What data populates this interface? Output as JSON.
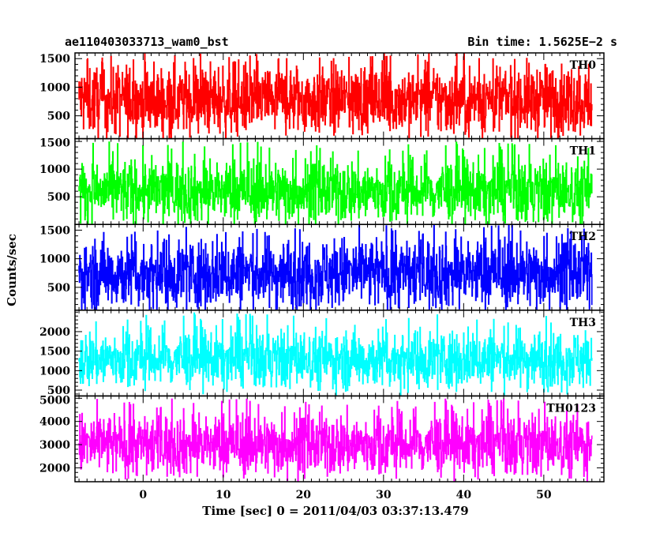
{
  "header": {
    "title_left": "ae110403033713_wam0_bst",
    "title_right": "Bin time: 1.5625E−2 s"
  },
  "chart_data": {
    "type": "line",
    "title": "ae110403033713_wam0_bst",
    "subtitle": "Bin time: 1.5625E−2 s",
    "xlabel": "Time [sec] 0 = 2011/04/03 03:37:13.479",
    "ylabel": "Counts/sec",
    "xlim": [
      -8.5,
      57.5
    ],
    "data_x_range": [
      -8,
      56
    ],
    "x_ticks": [
      0,
      10,
      20,
      30,
      40,
      50
    ],
    "grid": false,
    "panels": [
      {
        "name": "TH0",
        "color": "#ff0000",
        "ylim": [
          100,
          1600
        ],
        "y_ticks": [
          500,
          1000,
          1500
        ],
        "typical_range": [
          250,
          1400
        ],
        "peak_max": 1600,
        "mean": 780
      },
      {
        "name": "TH1",
        "color": "#00ff00",
        "ylim": [
          0,
          1550
        ],
        "y_ticks": [
          500,
          1000,
          1500
        ],
        "typical_range": [
          80,
          1150
        ],
        "peak_max": 1500,
        "mean": 600
      },
      {
        "name": "TH2",
        "color": "#0000ff",
        "ylim": [
          100,
          1600
        ],
        "y_ticks": [
          500,
          1000,
          1500
        ],
        "typical_range": [
          200,
          1350
        ],
        "peak_max": 1600,
        "mean": 750
      },
      {
        "name": "TH3",
        "color": "#00ffff",
        "ylim": [
          350,
          2550
        ],
        "y_ticks": [
          500,
          1000,
          1500,
          2000
        ],
        "typical_range": [
          600,
          2000
        ],
        "peak_max": 2500,
        "mean": 1300
      },
      {
        "name": "TH0123",
        "color": "#ff00ff",
        "ylim": [
          1400,
          5100
        ],
        "y_ticks": [
          2000,
          3000,
          4000,
          5000
        ],
        "typical_range": [
          1800,
          4300
        ],
        "peak_max": 5000,
        "mean": 3000
      }
    ]
  }
}
